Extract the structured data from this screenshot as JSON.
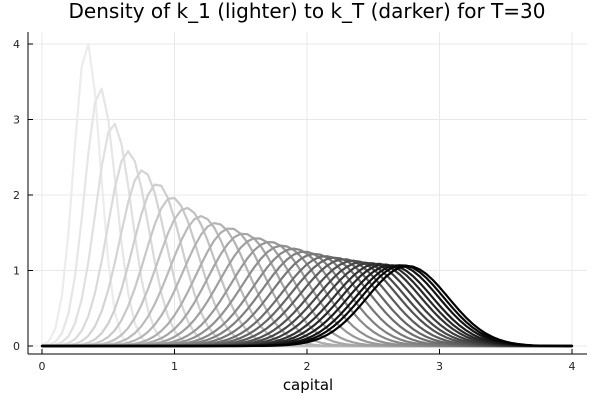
{
  "chart_data": {
    "type": "line",
    "title": "Density of k_1 (lighter) to k_T (darker) for T=30",
    "xlabel": "capital",
    "ylabel": "",
    "xlim": [
      0,
      4
    ],
    "ylim": [
      0,
      4.15
    ],
    "xticks": [
      0,
      1,
      2,
      3,
      4
    ],
    "xtick_labels": [
      "0",
      "1",
      "2",
      "3",
      "4"
    ],
    "yticks": [
      0,
      1,
      2,
      3,
      4
    ],
    "ytick_labels": [
      "0",
      "1",
      "2",
      "3",
      "4"
    ],
    "grid": true,
    "legend": "none",
    "x_grid": [
      0.0,
      0.05,
      0.1,
      0.15,
      0.2,
      0.25,
      0.3,
      0.35,
      0.4,
      0.45,
      0.5,
      0.55,
      0.6,
      0.65,
      0.7,
      0.75,
      0.8,
      0.85,
      0.9,
      0.95,
      1.0,
      1.05,
      1.1,
      1.15,
      1.2,
      1.25,
      1.3,
      1.35,
      1.4,
      1.45,
      1.5,
      1.55,
      1.6,
      1.65,
      1.7,
      1.75,
      1.8,
      1.85,
      1.9,
      1.95,
      2.0,
      2.05,
      2.1,
      2.15,
      2.2,
      2.25,
      2.3,
      2.35,
      2.4,
      2.45,
      2.5,
      2.55,
      2.6,
      2.65,
      2.7,
      2.75,
      2.8,
      2.85,
      2.9,
      2.95,
      3.0,
      3.05,
      3.1,
      3.15,
      3.2,
      3.25,
      3.3,
      3.35,
      3.4,
      3.45,
      3.5,
      3.55,
      3.6,
      3.65,
      3.7,
      3.75,
      3.8,
      3.85,
      3.9,
      3.95,
      4.0
    ],
    "series": [
      {
        "peak_x": 0.34,
        "peak_y": 4.02,
        "width": 0.1,
        "color": "#ececec"
      },
      {
        "peak_x": 0.44,
        "peak_y": 3.42,
        "width": 0.118,
        "color": "#e6e6e6"
      },
      {
        "peak_x": 0.54,
        "peak_y": 2.95,
        "width": 0.136,
        "color": "#e0e0e0"
      },
      {
        "peak_x": 0.65,
        "peak_y": 2.58,
        "width": 0.155,
        "color": "#dadada"
      },
      {
        "peak_x": 0.76,
        "peak_y": 2.33,
        "width": 0.172,
        "color": "#d4d4d4"
      },
      {
        "peak_x": 0.87,
        "peak_y": 2.15,
        "width": 0.186,
        "color": "#cecece"
      },
      {
        "peak_x": 0.98,
        "peak_y": 1.97,
        "width": 0.203,
        "color": "#c8c8c8"
      },
      {
        "peak_x": 1.09,
        "peak_y": 1.83,
        "width": 0.218,
        "color": "#c1c1c1"
      },
      {
        "peak_x": 1.2,
        "peak_y": 1.72,
        "width": 0.232,
        "color": "#bbbbbb"
      },
      {
        "peak_x": 1.31,
        "peak_y": 1.63,
        "width": 0.245,
        "color": "#b4b4b4"
      },
      {
        "peak_x": 1.42,
        "peak_y": 1.56,
        "width": 0.256,
        "color": "#adadad"
      },
      {
        "peak_x": 1.52,
        "peak_y": 1.49,
        "width": 0.268,
        "color": "#a6a6a6"
      },
      {
        "peak_x": 1.62,
        "peak_y": 1.43,
        "width": 0.279,
        "color": "#9f9f9f"
      },
      {
        "peak_x": 1.72,
        "peak_y": 1.38,
        "width": 0.289,
        "color": "#989898"
      },
      {
        "peak_x": 1.81,
        "peak_y": 1.33,
        "width": 0.298,
        "color": "#909090"
      },
      {
        "peak_x": 1.9,
        "peak_y": 1.29,
        "width": 0.306,
        "color": "#888888"
      },
      {
        "peak_x": 1.98,
        "peak_y": 1.25,
        "width": 0.313,
        "color": "#808080"
      },
      {
        "peak_x": 2.06,
        "peak_y": 1.22,
        "width": 0.318,
        "color": "#777777"
      },
      {
        "peak_x": 2.14,
        "peak_y": 1.19,
        "width": 0.322,
        "color": "#6e6e6e"
      },
      {
        "peak_x": 2.21,
        "peak_y": 1.17,
        "width": 0.325,
        "color": "#656565"
      },
      {
        "peak_x": 2.28,
        "peak_y": 1.15,
        "width": 0.327,
        "color": "#5c5c5c"
      },
      {
        "peak_x": 2.35,
        "peak_y": 1.13,
        "width": 0.327,
        "color": "#525252"
      },
      {
        "peak_x": 2.41,
        "peak_y": 1.11,
        "width": 0.326,
        "color": "#484848"
      },
      {
        "peak_x": 2.47,
        "peak_y": 1.1,
        "width": 0.324,
        "color": "#3e3e3e"
      },
      {
        "peak_x": 2.53,
        "peak_y": 1.09,
        "width": 0.321,
        "color": "#333333"
      },
      {
        "peak_x": 2.58,
        "peak_y": 1.08,
        "width": 0.318,
        "color": "#282828"
      },
      {
        "peak_x": 2.63,
        "peak_y": 1.07,
        "width": 0.315,
        "color": "#1d1d1d"
      },
      {
        "peak_x": 2.68,
        "peak_y": 1.07,
        "width": 0.312,
        "color": "#131313"
      },
      {
        "peak_x": 2.72,
        "peak_y": 1.07,
        "width": 0.309,
        "color": "#090909"
      },
      {
        "peak_x": 2.76,
        "peak_y": 1.06,
        "width": 0.306,
        "color": "#000000"
      }
    ]
  }
}
